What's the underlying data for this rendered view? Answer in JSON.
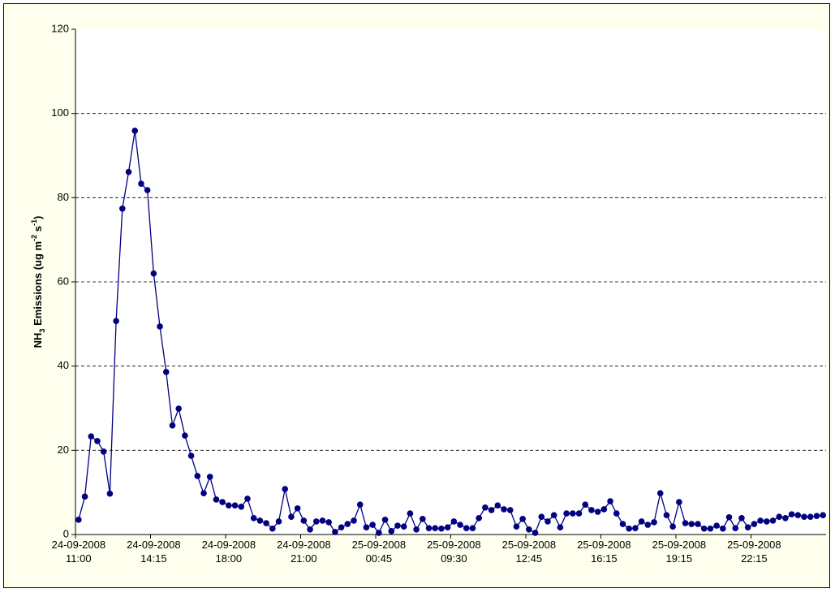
{
  "chart_data": {
    "type": "line",
    "ylabel": [
      {
        "text": "NH"
      },
      {
        "text": "3",
        "script": "sub"
      },
      {
        "text": " Emissions (ug m"
      },
      {
        "text": "-2",
        "script": "super"
      },
      {
        "text": " s"
      },
      {
        "text": "-1",
        "script": "super"
      },
      {
        "text": ")"
      }
    ],
    "categories": [
      "24-09-2008\n11:00",
      null,
      null,
      null,
      null,
      null,
      null,
      null,
      null,
      null,
      null,
      null,
      "24-09-2008\n14:15",
      null,
      null,
      null,
      null,
      null,
      null,
      null,
      null,
      null,
      null,
      null,
      "24-09-2008\n18:00",
      null,
      null,
      null,
      null,
      null,
      null,
      null,
      null,
      null,
      null,
      null,
      "24-09-2008\n21:00",
      null,
      null,
      null,
      null,
      null,
      null,
      null,
      null,
      null,
      null,
      null,
      "25-09-2008\n00:45",
      null,
      null,
      null,
      null,
      null,
      null,
      null,
      null,
      null,
      null,
      null,
      "25-09-2008\n09:30",
      null,
      null,
      null,
      null,
      null,
      null,
      null,
      null,
      null,
      null,
      null,
      "25-09-2008\n12:45",
      null,
      null,
      null,
      null,
      null,
      null,
      null,
      null,
      null,
      null,
      null,
      "25-09-2008\n16:15",
      null,
      null,
      null,
      null,
      null,
      null,
      null,
      null,
      null,
      null,
      null,
      "25-09-2008\n19:15",
      null,
      null,
      null,
      null,
      null,
      null,
      null,
      null,
      null,
      null,
      null,
      "25-09-2008\n22:15",
      null,
      null,
      null,
      null,
      null,
      null,
      null,
      null,
      null,
      null,
      null
    ],
    "series": [
      {
        "color": "#000080",
        "values": [
          3.5,
          9,
          23.3,
          22.2,
          19.7,
          9.7,
          50.7,
          77.4,
          86.1,
          95.9,
          83.3,
          81.8,
          62,
          49.4,
          38.6,
          25.9,
          29.9,
          23.5,
          18.7,
          13.9,
          9.8,
          13.7,
          8.3,
          7.7,
          6.9,
          6.9,
          6.6,
          8.5,
          3.9,
          3.3,
          2.7,
          1.4,
          3.1,
          10.8,
          4.2,
          6.2,
          3.3,
          1.2,
          3.1,
          3.3,
          2.9,
          0.6,
          1.7,
          2.5,
          3.3,
          7.1,
          1.7,
          2.3,
          0.4,
          3.5,
          0.8,
          2.1,
          1.9,
          5,
          1.2,
          3.7,
          1.5,
          1.5,
          1.4,
          1.7,
          3.1,
          2.3,
          1.5,
          1.5,
          3.9,
          6.4,
          5.8,
          6.9,
          6,
          5.8,
          1.9,
          3.7,
          1.2,
          0.4,
          4.2,
          3.1,
          4.6,
          1.7,
          5,
          5,
          5,
          7.1,
          5.8,
          5.4,
          6,
          7.9,
          5,
          2.5,
          1.4,
          1.5,
          3.1,
          2.3,
          2.9,
          9.8,
          4.6,
          1.9,
          7.7,
          2.7,
          2.5,
          2.5,
          1.4,
          1.4,
          2.1,
          1.4,
          4.1,
          1.5,
          3.9,
          1.7,
          2.5,
          3.3,
          3.1,
          3.3,
          4.2,
          3.9,
          4.8,
          4.6,
          4.2,
          4.2,
          4.4,
          4.6
        ]
      }
    ],
    "ylim": [
      0,
      120
    ],
    "yticks": [
      0,
      20,
      40,
      60,
      80,
      100,
      120
    ],
    "grid": true
  }
}
